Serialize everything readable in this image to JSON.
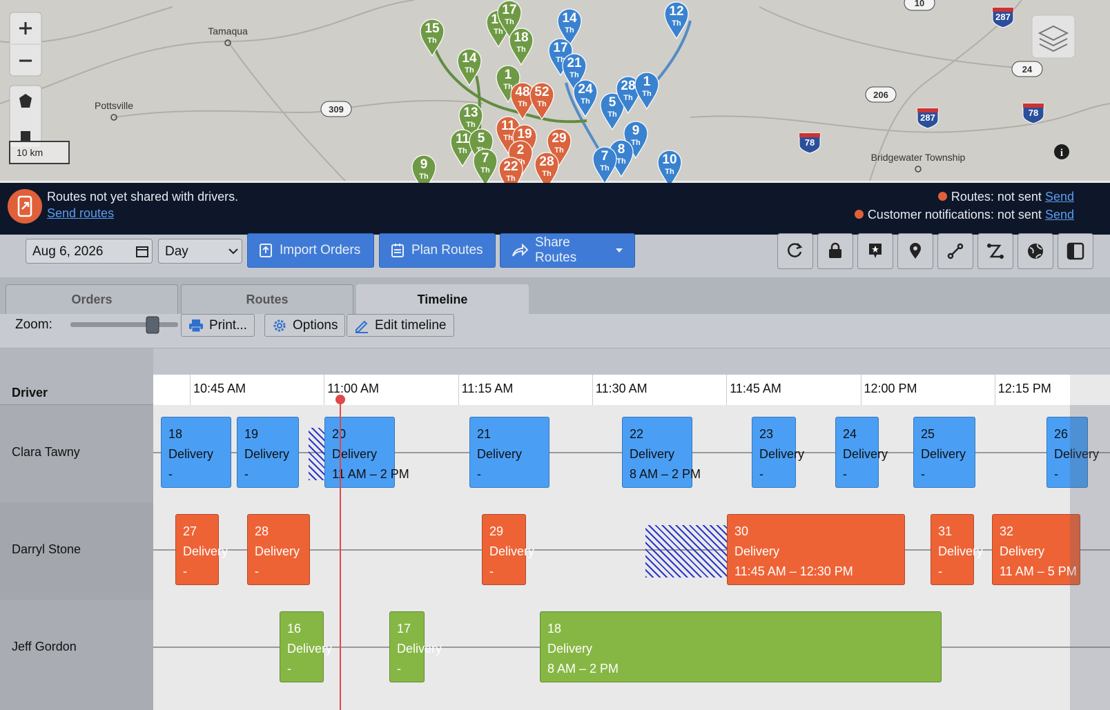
{
  "map": {
    "places": [
      "Tamaqua",
      "Pottsville",
      "Bridgewater Township"
    ],
    "roads": [
      "309",
      "287",
      "24",
      "206",
      "287",
      "78",
      "78",
      "10"
    ],
    "scale": "10 km",
    "pins": [
      {
        "label": "15",
        "sub": "Th",
        "color": "#6f9a45"
      },
      {
        "label": "16",
        "sub": "Th",
        "color": "#6f9a45"
      },
      {
        "label": "17",
        "sub": "Th",
        "color": "#6f9a45"
      },
      {
        "label": "18",
        "sub": "Th",
        "color": "#6f9a45"
      },
      {
        "label": "14",
        "sub": "Th",
        "color": "#6f9a45"
      },
      {
        "label": "1",
        "sub": "Th",
        "color": "#6f9a45"
      },
      {
        "label": "13",
        "sub": "Th",
        "color": "#6f9a45"
      },
      {
        "label": "11",
        "sub": "Th",
        "color": "#6f9a45"
      },
      {
        "label": "5",
        "sub": "Th",
        "color": "#6f9a45"
      },
      {
        "label": "7",
        "sub": "Th",
        "color": "#6f9a45"
      },
      {
        "label": "9",
        "sub": "Th",
        "color": "#6f9a45"
      },
      {
        "label": "48",
        "sub": "Th",
        "color": "#d9643e"
      },
      {
        "label": "52",
        "sub": "Th",
        "color": "#d9643e"
      },
      {
        "label": "11",
        "sub": "Th",
        "color": "#d9643e"
      },
      {
        "label": "19",
        "sub": "Th",
        "color": "#d9643e"
      },
      {
        "label": "29",
        "sub": "Th",
        "color": "#d9643e"
      },
      {
        "label": "2",
        "sub": "Th",
        "color": "#d9643e"
      },
      {
        "label": "28",
        "sub": "Th",
        "color": "#d9643e"
      },
      {
        "label": "22",
        "sub": "Th",
        "color": "#d9643e"
      },
      {
        "label": "14",
        "sub": "Th",
        "color": "#3a82cf"
      },
      {
        "label": "12",
        "sub": "Th",
        "color": "#3a82cf"
      },
      {
        "label": "17",
        "sub": "Th",
        "color": "#3a82cf"
      },
      {
        "label": "21",
        "sub": "Th",
        "color": "#3a82cf"
      },
      {
        "label": "24",
        "sub": "Th",
        "color": "#3a82cf"
      },
      {
        "label": "5",
        "sub": "Th",
        "color": "#3a82cf"
      },
      {
        "label": "28",
        "sub": "Th",
        "color": "#3a82cf"
      },
      {
        "label": "1",
        "sub": "Th",
        "color": "#3a82cf"
      },
      {
        "label": "9",
        "sub": "Th",
        "color": "#3a82cf"
      },
      {
        "label": "8",
        "sub": "Th",
        "color": "#3a82cf"
      },
      {
        "label": "7",
        "sub": "Th",
        "color": "#3a82cf"
      },
      {
        "label": "10",
        "sub": "Th",
        "color": "#3a82cf"
      }
    ]
  },
  "banner": {
    "message": "Routes not yet shared with drivers.",
    "link": "Send routes",
    "status": [
      {
        "label": "Routes: not sent",
        "action": "Send"
      },
      {
        "label": "Customer notifications: not sent",
        "action": "Send"
      }
    ]
  },
  "toolbar": {
    "date": "Aug 6, 2026",
    "view": "Day",
    "buttons": [
      "Import Orders",
      "Plan Routes",
      "Share Routes"
    ]
  },
  "tabs": [
    "Orders",
    "Routes",
    "Timeline"
  ],
  "zoom_bar": {
    "label": "Zoom:",
    "buttons": [
      "Print...",
      "Options",
      "Edit timeline"
    ]
  },
  "timeline": {
    "header": "Driver",
    "times": [
      "10:45 AM",
      "11:00 AM",
      "11:15 AM",
      "11:30 AM",
      "11:45 AM",
      "12:00 PM",
      "12:15 PM"
    ],
    "drivers": [
      {
        "name": "Clara Tawny",
        "color": "#4a9ff5",
        "stops": [
          {
            "number": "18",
            "type": "Delivery",
            "window": "-"
          },
          {
            "number": "19",
            "type": "Delivery",
            "window": "-"
          },
          {
            "number": "20",
            "type": "Delivery",
            "window": "11 AM – 2 PM"
          },
          {
            "number": "21",
            "type": "Delivery",
            "window": "-"
          },
          {
            "number": "22",
            "type": "Delivery",
            "window": "8 AM – 2 PM"
          },
          {
            "number": "23",
            "type": "Delivery",
            "window": "-"
          },
          {
            "number": "24",
            "type": "Delivery",
            "window": "-"
          },
          {
            "number": "25",
            "type": "Delivery",
            "window": "-"
          },
          {
            "number": "26",
            "type": "Delivery",
            "window": "-"
          }
        ]
      },
      {
        "name": "Darryl Stone",
        "color": "#ee6336",
        "stops": [
          {
            "number": "27",
            "type": "Delivery",
            "window": "-"
          },
          {
            "number": "28",
            "type": "Delivery",
            "window": "-"
          },
          {
            "number": "29",
            "type": "Delivery",
            "window": "-"
          },
          {
            "number": "30",
            "type": "Delivery",
            "window": "11:45 AM – 12:30 PM"
          },
          {
            "number": "31",
            "type": "Delivery",
            "window": "-"
          },
          {
            "number": "32",
            "type": "Delivery",
            "window": "11 AM – 5 PM"
          }
        ]
      },
      {
        "name": "Jeff Gordon",
        "color": "#86b744",
        "stops": [
          {
            "number": "16",
            "type": "Delivery",
            "window": "-"
          },
          {
            "number": "17",
            "type": "Delivery",
            "window": "-"
          },
          {
            "number": "18",
            "type": "Delivery",
            "window": "8 AM – 2 PM"
          }
        ]
      }
    ]
  }
}
